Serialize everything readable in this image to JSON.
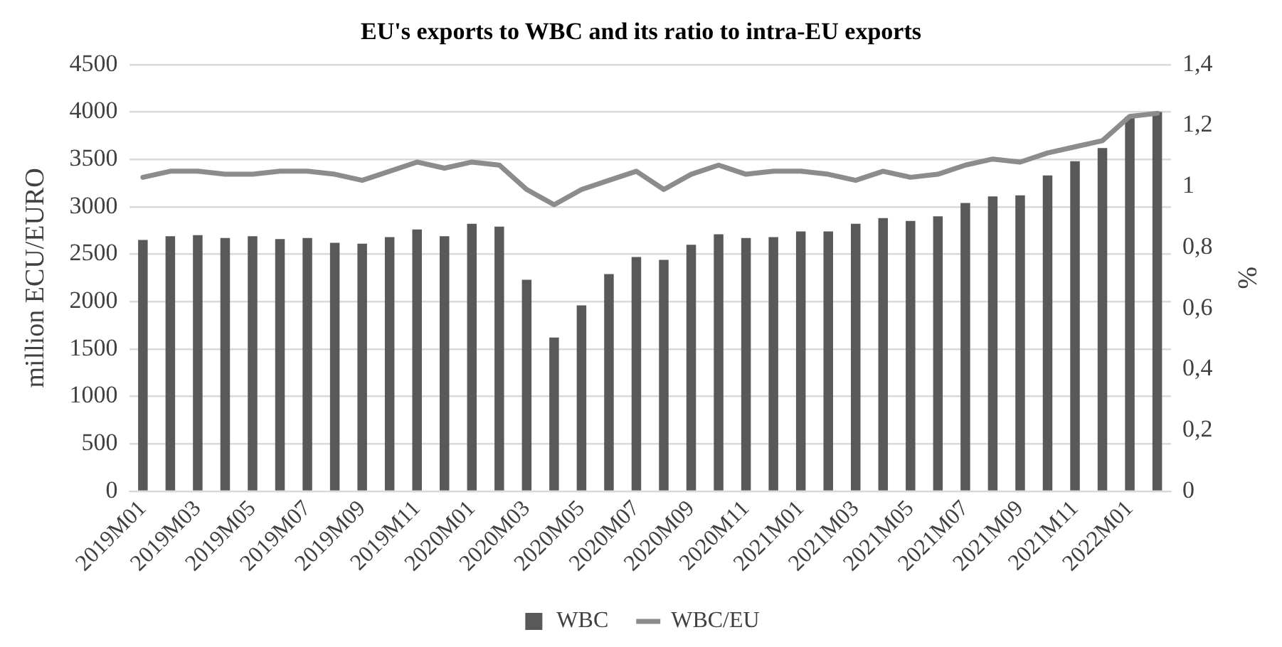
{
  "chart_data": {
    "type": "bar",
    "title": "EU's exports to WBC and its ratio to intra-EU exports",
    "ylabel": "million ECU/EURO",
    "y2label": "%",
    "categories": [
      "2019M01",
      null,
      "2019M03",
      null,
      "2019M05",
      null,
      "2019M07",
      null,
      "2019M09",
      null,
      "2019M11",
      null,
      "2020M01",
      null,
      "2020M03",
      null,
      "2020M05",
      null,
      "2020M07",
      null,
      "2020M09",
      null,
      "2020M11",
      null,
      "2021M01",
      null,
      "2021M03",
      null,
      "2021M05",
      null,
      "2021M07",
      null,
      "2021M09",
      null,
      "2021M11",
      null,
      "2022M01",
      null
    ],
    "series": [
      {
        "name": "WBC",
        "color": "#595959",
        "values": [
          2650,
          2690,
          2700,
          2670,
          2690,
          2660,
          2670,
          2620,
          2610,
          2680,
          2760,
          2690,
          2820,
          2790,
          2230,
          1620,
          1960,
          2290,
          2470,
          2440,
          2600,
          2710,
          2670,
          2680,
          2740,
          2740,
          2820,
          2880,
          2850,
          2900,
          3040,
          3110,
          3120,
          3330,
          3480,
          3620,
          3950,
          4000
        ]
      },
      {
        "name": "WBC/EU",
        "type": "line",
        "axis": "y2",
        "color": "#8c8c8c",
        "values": [
          1.03,
          1.05,
          1.05,
          1.04,
          1.04,
          1.05,
          1.05,
          1.04,
          1.02,
          1.05,
          1.08,
          1.06,
          1.08,
          1.07,
          0.99,
          0.94,
          0.99,
          1.02,
          1.05,
          0.99,
          1.04,
          1.07,
          1.04,
          1.05,
          1.05,
          1.04,
          1.02,
          1.05,
          1.03,
          1.04,
          1.07,
          1.09,
          1.08,
          1.11,
          1.13,
          1.15,
          1.23,
          1.24
        ]
      }
    ],
    "ylim": [
      0,
      4500
    ],
    "yticks": [
      0,
      500,
      1000,
      1500,
      2000,
      2500,
      3000,
      3500,
      4000,
      4500
    ],
    "y2lim": [
      0,
      1.4
    ],
    "y2ticks": [
      0,
      {
        "value": 0.2,
        "label": "0,2"
      },
      {
        "value": 0.4,
        "label": "0,4"
      },
      {
        "value": 0.6,
        "label": "0,6"
      },
      {
        "value": 0.8,
        "label": "0,8"
      },
      1,
      {
        "value": 1.2,
        "label": "1,2"
      },
      {
        "value": 1.4,
        "label": "1,4"
      }
    ],
    "grid": "y",
    "legend": "bottom",
    "marker": "none",
    "line_style": "solid"
  }
}
